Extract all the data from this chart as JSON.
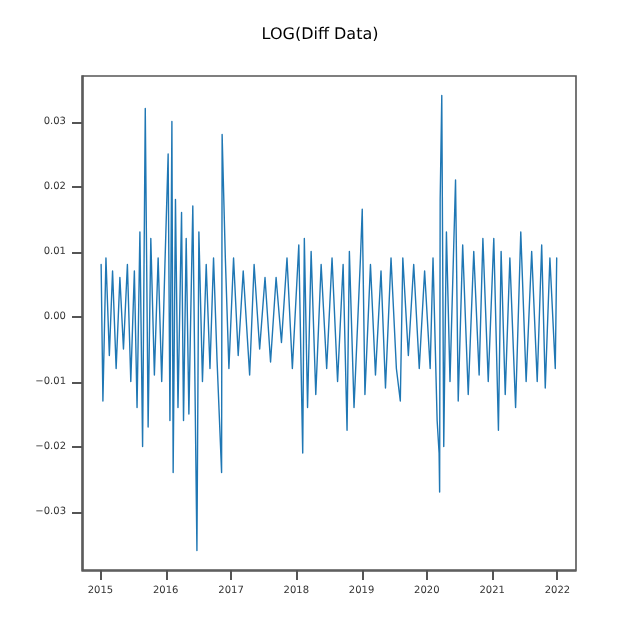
{
  "chart_data": {
    "type": "line",
    "title": "LOG(Diff Data)",
    "x": [
      "2015-01-05",
      "2015-01-15",
      "2015-02-01",
      "2015-02-20",
      "2015-03-10",
      "2015-03-30",
      "2015-04-20",
      "2015-05-10",
      "2015-06-01",
      "2015-06-20",
      "2015-07-10",
      "2015-07-25",
      "2015-08-10",
      "2015-08-25",
      "2015-09-09",
      "2015-09-25",
      "2015-10-10",
      "2015-10-30",
      "2015-11-20",
      "2015-12-10",
      "2015-12-28",
      "2016-01-15",
      "2016-01-25",
      "2016-02-05",
      "2016-02-12",
      "2016-02-25",
      "2016-03-10",
      "2016-03-30",
      "2016-04-10",
      "2016-04-25",
      "2016-05-10",
      "2016-06-01",
      "2016-06-15",
      "2016-06-24",
      "2016-07-05",
      "2016-07-25",
      "2016-08-15",
      "2016-09-05",
      "2016-09-25",
      "2016-10-15",
      "2016-11-09",
      "2016-11-12",
      "2016-11-30",
      "2016-12-20",
      "2017-01-15",
      "2017-02-10",
      "2017-03-10",
      "2017-04-15",
      "2017-05-10",
      "2017-06-10",
      "2017-07-10",
      "2017-08-10",
      "2017-09-10",
      "2017-10-10",
      "2017-11-10",
      "2017-12-10",
      "2018-01-15",
      "2018-02-06",
      "2018-02-15",
      "2018-03-05",
      "2018-03-25",
      "2018-04-20",
      "2018-05-20",
      "2018-06-20",
      "2018-07-20",
      "2018-08-20",
      "2018-09-20",
      "2018-10-12",
      "2018-10-25",
      "2018-11-20",
      "2018-12-26",
      "2019-01-05",
      "2019-01-20",
      "2019-02-20",
      "2019-03-20",
      "2019-04-20",
      "2019-05-15",
      "2019-06-15",
      "2019-07-15",
      "2019-08-06",
      "2019-08-20",
      "2019-09-20",
      "2019-10-20",
      "2019-11-20",
      "2019-12-20",
      "2020-01-20",
      "2020-02-05",
      "2020-02-28",
      "2020-03-10",
      "2020-03-13",
      "2020-03-16",
      "2020-03-25",
      "2020-04-05",
      "2020-04-20",
      "2020-05-10",
      "2020-06-10",
      "2020-06-25",
      "2020-07-20",
      "2020-08-20",
      "2020-09-20",
      "2020-10-20",
      "2020-11-10",
      "2020-12-10",
      "2021-01-10",
      "2021-02-05",
      "2021-02-20",
      "2021-03-15",
      "2021-04-10",
      "2021-05-12",
      "2021-06-10",
      "2021-07-10",
      "2021-08-10",
      "2021-09-10",
      "2021-10-05",
      "2021-10-25",
      "2021-11-20",
      "2021-12-20",
      "2021-12-28"
    ],
    "series": [
      {
        "color": "#1f77b4",
        "values": [
          0.008,
          -0.013,
          0.009,
          -0.006,
          0.007,
          -0.008,
          0.006,
          -0.005,
          0.008,
          -0.01,
          0.007,
          -0.014,
          0.013,
          -0.02,
          0.032,
          -0.017,
          0.012,
          -0.009,
          0.009,
          -0.01,
          0.008,
          0.025,
          -0.016,
          0.03,
          -0.024,
          0.018,
          -0.014,
          0.016,
          -0.016,
          0.012,
          -0.015,
          0.017,
          -0.015,
          -0.036,
          0.013,
          -0.01,
          0.008,
          -0.008,
          0.009,
          -0.007,
          -0.024,
          0.028,
          0.009,
          -0.008,
          0.009,
          -0.006,
          0.007,
          -0.009,
          0.008,
          -0.005,
          0.006,
          -0.007,
          0.006,
          -0.004,
          0.009,
          -0.008,
          0.011,
          -0.021,
          0.012,
          -0.014,
          0.01,
          -0.012,
          0.008,
          -0.008,
          0.009,
          -0.01,
          0.008,
          -0.0175,
          0.01,
          -0.014,
          0.009,
          0.0165,
          -0.012,
          0.008,
          -0.009,
          0.007,
          -0.011,
          0.009,
          -0.008,
          -0.013,
          0.009,
          -0.006,
          0.008,
          -0.008,
          0.007,
          -0.008,
          0.009,
          -0.016,
          -0.021,
          -0.027,
          0.018,
          0.034,
          -0.02,
          0.013,
          -0.01,
          0.021,
          -0.013,
          0.011,
          -0.012,
          0.01,
          -0.009,
          0.012,
          -0.01,
          0.012,
          -0.0175,
          0.01,
          -0.012,
          0.009,
          -0.014,
          0.013,
          -0.01,
          0.01,
          -0.01,
          0.011,
          -0.011,
          0.009,
          -0.008,
          0.009
        ]
      }
    ],
    "xlim": [
      "2014-09-20",
      "2022-04-15"
    ],
    "xticks": [
      "2015",
      "2016",
      "2017",
      "2018",
      "2019",
      "2020",
      "2021",
      "2022"
    ],
    "ylim": [
      -0.039,
      0.037
    ],
    "yticks": [
      -0.03,
      -0.02,
      -0.01,
      {
        "value": 0,
        "label": "0.00"
      },
      0.01,
      0.02,
      0.03
    ],
    "marker": "none",
    "line_style": "solid",
    "grid": false
  }
}
